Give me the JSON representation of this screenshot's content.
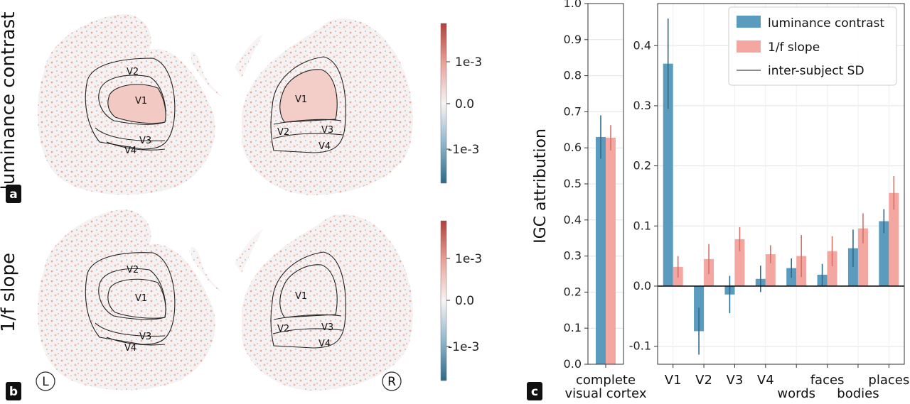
{
  "colors": {
    "luminance": "#5b9bbd",
    "slope": "#f4a6a0",
    "errLum": "#2f6a8c",
    "errSlope": "#d9716a",
    "sdGray": "#8c8c8c",
    "cmapPos": "#b2403b",
    "cmapNeg": "#2d6a88"
  },
  "brain_maps": {
    "rows": [
      {
        "letter": "a",
        "label": "luminance contrast"
      },
      {
        "letter": "b",
        "label": "1/f slope"
      }
    ],
    "hemispheres": {
      "left": "L",
      "right": "R"
    },
    "areas": [
      "V1",
      "V2",
      "V3",
      "V4"
    ],
    "colorbar_ticks": [
      "1e-3",
      "0.0",
      "-1e-3"
    ]
  },
  "panel_c": {
    "letter": "c"
  },
  "chart_data": [
    {
      "type": "bar",
      "title": "",
      "categories": [
        "complete visual cortex"
      ],
      "category_lines": [
        [
          "complete",
          "visual cortex"
        ]
      ],
      "series": [
        {
          "name": "luminance contrast",
          "values": [
            0.63
          ],
          "sd": [
            0.06
          ]
        },
        {
          "name": "1/f slope",
          "values": [
            0.628
          ],
          "sd": [
            0.035
          ]
        }
      ],
      "xlabel": "",
      "ylabel": "IGC attribution",
      "ylim": [
        0,
        1.0
      ],
      "yticks": [
        "0.0",
        "0.1",
        "0.2",
        "0.3",
        "0.4",
        "0.5",
        "0.6",
        "0.7",
        "0.8",
        "0.9",
        "1.0"
      ],
      "grid": true
    },
    {
      "type": "bar",
      "title": "",
      "categories": [
        "V1",
        "V2",
        "V3",
        "V4",
        "words",
        "faces",
        "bodies",
        "places"
      ],
      "series": [
        {
          "name": "luminance contrast",
          "values": [
            0.37,
            -0.075,
            -0.014,
            0.012,
            0.03,
            0.019,
            0.063,
            0.108
          ],
          "sd": [
            0.075,
            0.039,
            0.031,
            0.022,
            0.016,
            0.018,
            0.031,
            0.02
          ]
        },
        {
          "name": "1/f slope",
          "values": [
            0.032,
            0.045,
            0.078,
            0.053,
            0.05,
            0.058,
            0.096,
            0.155
          ],
          "sd": [
            0.018,
            0.025,
            0.02,
            0.015,
            0.035,
            0.025,
            0.025,
            0.028
          ]
        }
      ],
      "legend": [
        "luminance contrast",
        "1/f slope",
        "inter-subject SD"
      ],
      "legend_position": "top-right",
      "xlabel": "",
      "ylabel": "",
      "ylim": [
        -0.13,
        0.47
      ],
      "yticks": [
        -0.1,
        0.0,
        0.1,
        0.2,
        0.3,
        0.4
      ],
      "ytick_labels": [
        "-0.1",
        "0.0",
        "0.1",
        "0.2",
        "0.3",
        "0.4"
      ],
      "grid": true
    }
  ]
}
